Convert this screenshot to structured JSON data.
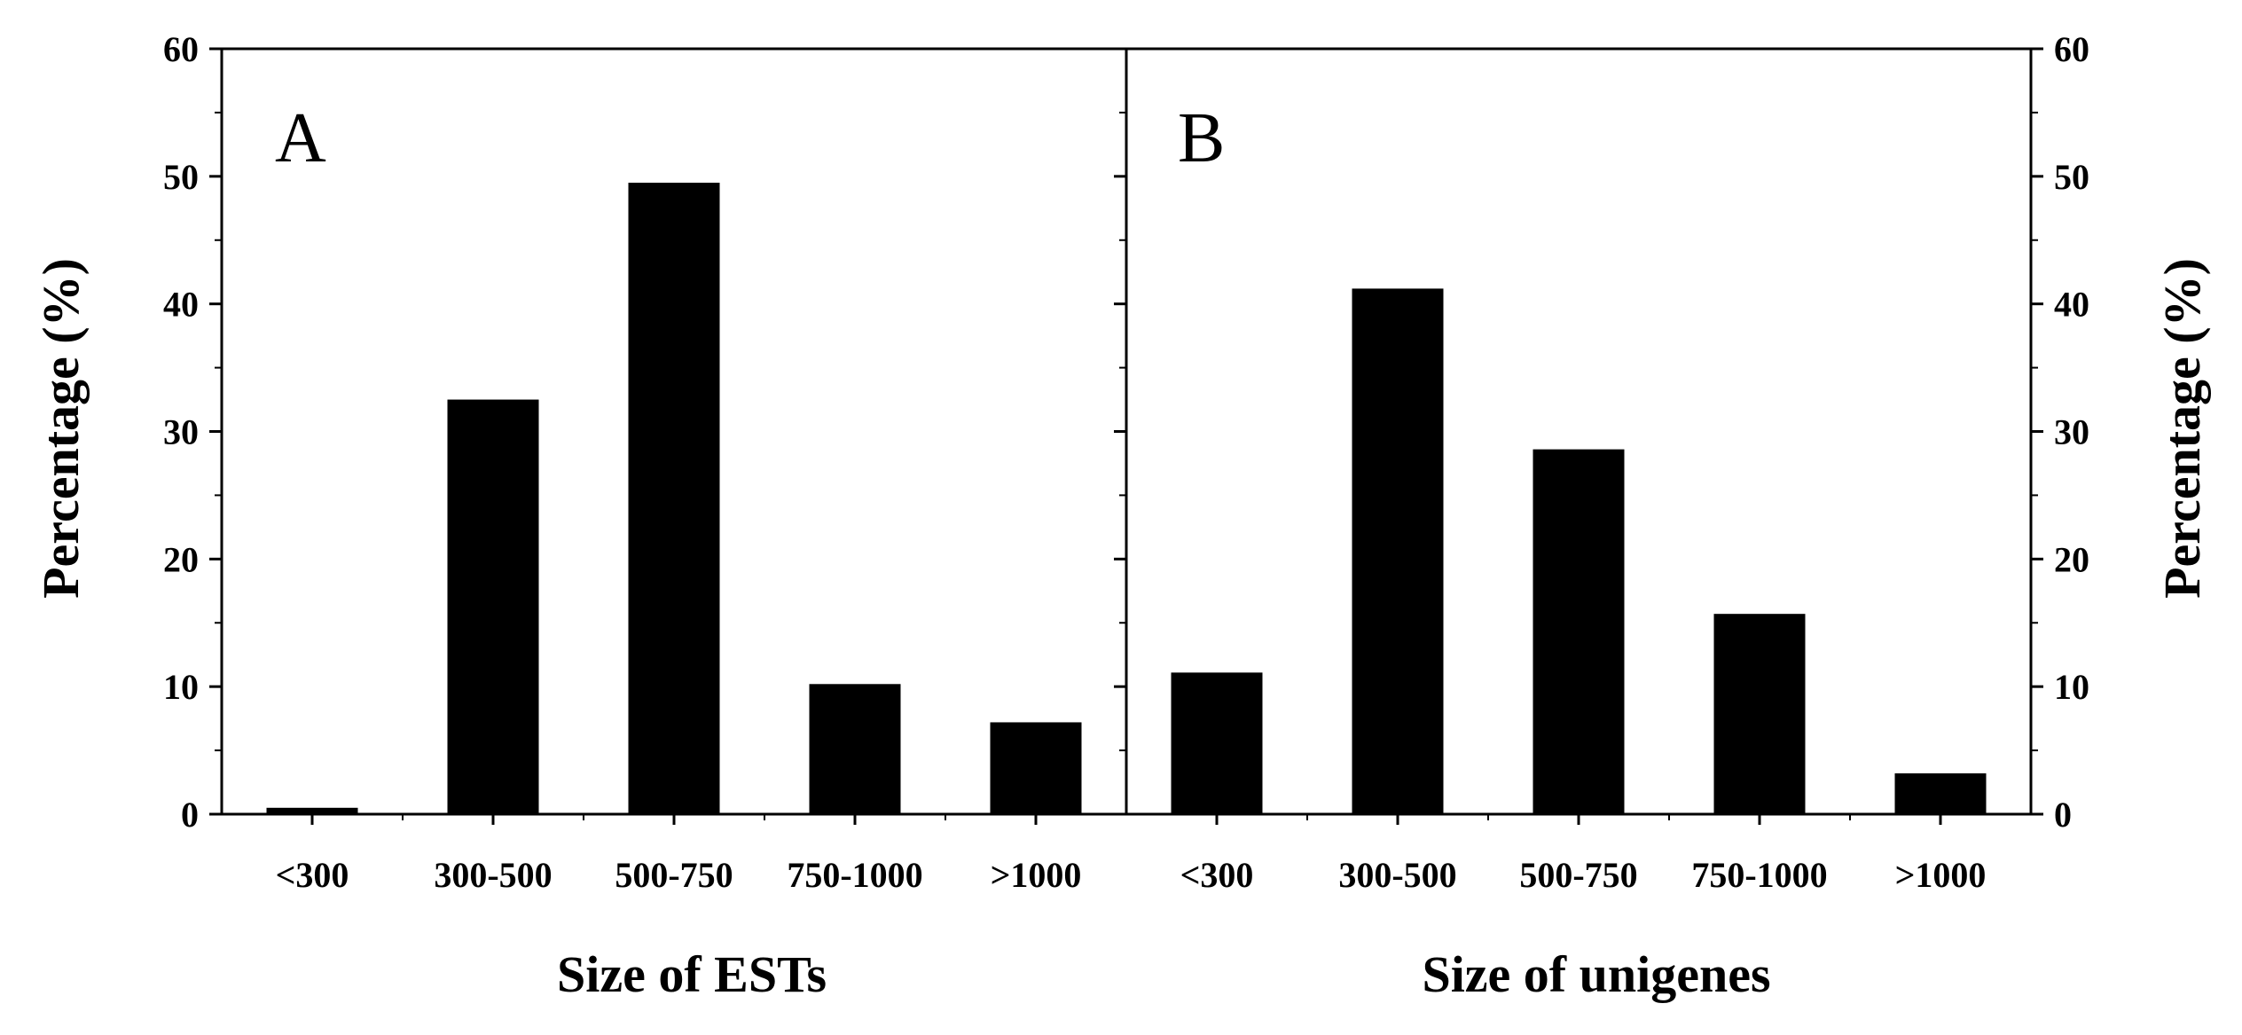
{
  "chart_data": [
    {
      "type": "bar",
      "panel": "A",
      "categories": [
        "<300",
        "300-500",
        "500-750",
        "750-1000",
        ">1000"
      ],
      "values": [
        0.5,
        32.5,
        49.5,
        10.2,
        7.2
      ],
      "xlabel": "Size of ESTs",
      "ylabel": "Percentage (%)",
      "ylim": [
        0,
        60
      ],
      "yticks": [
        0,
        10,
        20,
        30,
        40,
        50,
        60
      ],
      "bar_color": "#000000"
    },
    {
      "type": "bar",
      "panel": "B",
      "categories": [
        "<300",
        "300-500",
        "500-750",
        "750-1000",
        ">1000"
      ],
      "values": [
        11.1,
        41.2,
        28.6,
        15.7,
        3.2
      ],
      "xlabel": "Size of unigenes",
      "ylabel": "Percentage (%)",
      "ylim": [
        0,
        60
      ],
      "yticks": [
        0,
        10,
        20,
        30,
        40,
        50,
        60
      ],
      "bar_color": "#000000"
    }
  ]
}
